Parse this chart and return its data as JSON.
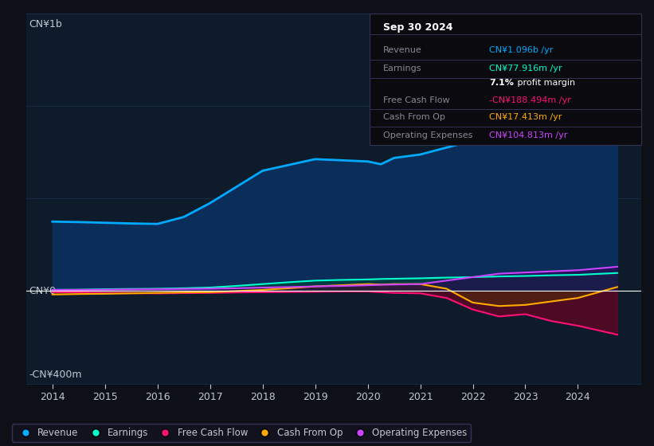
{
  "bg_color": "#0d1117",
  "plot_bg_color": "#0d1b2a",
  "grid_color": "#1e3050",
  "text_color": "#c0c8d0",
  "ylabel_top": "CN¥1b",
  "ylabel_bottom": "-CN¥400m",
  "y0_label": "CN¥0",
  "x_years": [
    2014,
    2014.5,
    2015,
    2015.5,
    2016,
    2016.5,
    2017,
    2017.5,
    2018,
    2018.5,
    2019,
    2019.5,
    2020,
    2020.25,
    2020.5,
    2021,
    2021.5,
    2022,
    2022.5,
    2023,
    2023.5,
    2024,
    2024.75
  ],
  "revenue": [
    300,
    298,
    295,
    292,
    290,
    320,
    380,
    450,
    520,
    545,
    570,
    565,
    560,
    548,
    575,
    590,
    620,
    650,
    750,
    850,
    950,
    1050,
    1096
  ],
  "earnings": [
    5,
    6,
    8,
    9,
    10,
    12,
    15,
    22,
    30,
    38,
    45,
    48,
    50,
    52,
    53,
    55,
    58,
    60,
    63,
    65,
    68,
    70,
    77.916
  ],
  "free_cash_flow": [
    -5,
    -6,
    -8,
    -9,
    -10,
    -9,
    -8,
    -6,
    -5,
    -4,
    -3,
    -2,
    -2,
    -5,
    -8,
    -10,
    -30,
    -80,
    -110,
    -100,
    -130,
    -150,
    -188.494
  ],
  "cash_from_op": [
    -15,
    -13,
    -12,
    -10,
    -8,
    -6,
    -5,
    0,
    5,
    12,
    20,
    25,
    30,
    28,
    30,
    30,
    10,
    -50,
    -65,
    -60,
    -45,
    -30,
    17.413
  ],
  "operating_expenses": [
    5,
    5,
    6,
    7,
    8,
    9,
    10,
    12,
    15,
    17,
    20,
    22,
    25,
    27,
    28,
    30,
    45,
    60,
    75,
    80,
    85,
    90,
    104.813
  ],
  "revenue_color": "#00aaff",
  "earnings_color": "#00ffcc",
  "fcf_color": "#ff1177",
  "cashop_color": "#ffaa00",
  "opex_color": "#cc44ff",
  "revenue_fill": "#0a3060",
  "legend_items": [
    "Revenue",
    "Earnings",
    "Free Cash Flow",
    "Cash From Op",
    "Operating Expenses"
  ],
  "legend_colors": [
    "#00aaff",
    "#00ffcc",
    "#ff1177",
    "#ffaa00",
    "#cc44ff"
  ],
  "tooltip_title": "Sep 30 2024",
  "tooltip_rows": [
    {
      "label": "Revenue",
      "value": "CN¥1.096b /yr",
      "value_color": "#00aaff"
    },
    {
      "label": "Earnings",
      "value": "CN¥77.916m /yr",
      "value_color": "#00ffcc"
    },
    {
      "label": "",
      "value": "7.1% profit margin",
      "value_color": "#ffffff"
    },
    {
      "label": "Free Cash Flow",
      "value": "-CN¥188.494m /yr",
      "value_color": "#ff1177"
    },
    {
      "label": "Cash From Op",
      "value": "CN¥17.413m /yr",
      "value_color": "#ffaa00"
    },
    {
      "label": "Operating Expenses",
      "value": "CN¥104.813m /yr",
      "value_color": "#cc44ff"
    }
  ]
}
